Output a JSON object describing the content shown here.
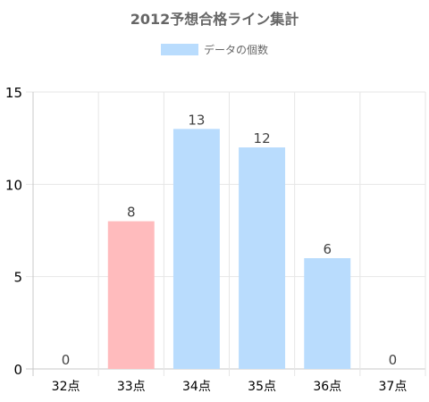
{
  "chart_data": {
    "type": "bar",
    "title": "2012予想合格ライン集計",
    "categories": [
      "32点",
      "33点",
      "34点",
      "35点",
      "36点",
      "37点"
    ],
    "series": [
      {
        "name": "データの個数",
        "values": [
          0,
          8,
          13,
          12,
          6,
          0
        ],
        "colors": [
          "#b9dcfd",
          "#ffbbbd",
          "#b9dcfd",
          "#b9dcfd",
          "#b9dcfd",
          "#b9dcfd"
        ]
      }
    ],
    "data_labels": [
      "0",
      "8",
      "13",
      "12",
      "6",
      "0"
    ],
    "y_ticks": [
      "0",
      "5",
      "10",
      "15"
    ],
    "ylim": [
      0,
      15
    ],
    "xlabel": "",
    "ylabel": "",
    "grid": true,
    "legend_position": "top-center"
  },
  "colors": {
    "default_bar": "#b9dcfd",
    "highlight_bar": "#ffbbbd",
    "grid": "#e6e6e6",
    "text": "#666666"
  }
}
